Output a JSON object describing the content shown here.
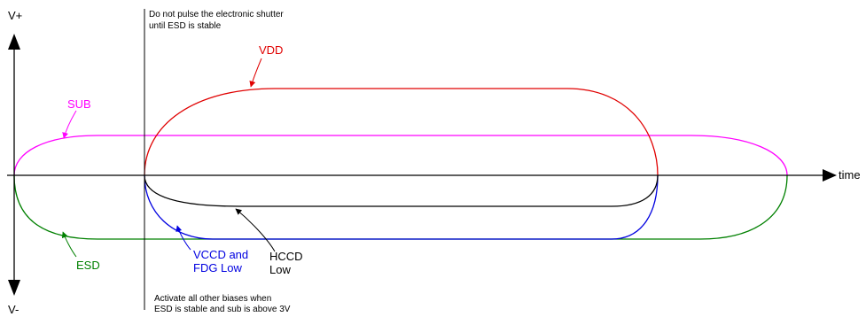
{
  "axes": {
    "v_plus": "V+",
    "v_minus": "V-",
    "time": "time"
  },
  "notes": {
    "top_line1": "Do not pulse the electronic shutter",
    "top_line2": "until ESD is stable",
    "bottom_line1": "Activate all other biases when",
    "bottom_line2": "ESD is stable and sub is above 3V"
  },
  "curves": {
    "vdd": {
      "label": "VDD",
      "color": "#e00000"
    },
    "sub": {
      "label": "SUB",
      "color": "#ff00ff"
    },
    "esd": {
      "label": "ESD",
      "color": "#008000"
    },
    "vccd": {
      "label_line1": "VCCD and",
      "label_line2": "FDG Low",
      "color": "#0000e0"
    },
    "hccd": {
      "label_line1": "HCCD",
      "label_line2": "Low",
      "color": "#000000"
    }
  }
}
